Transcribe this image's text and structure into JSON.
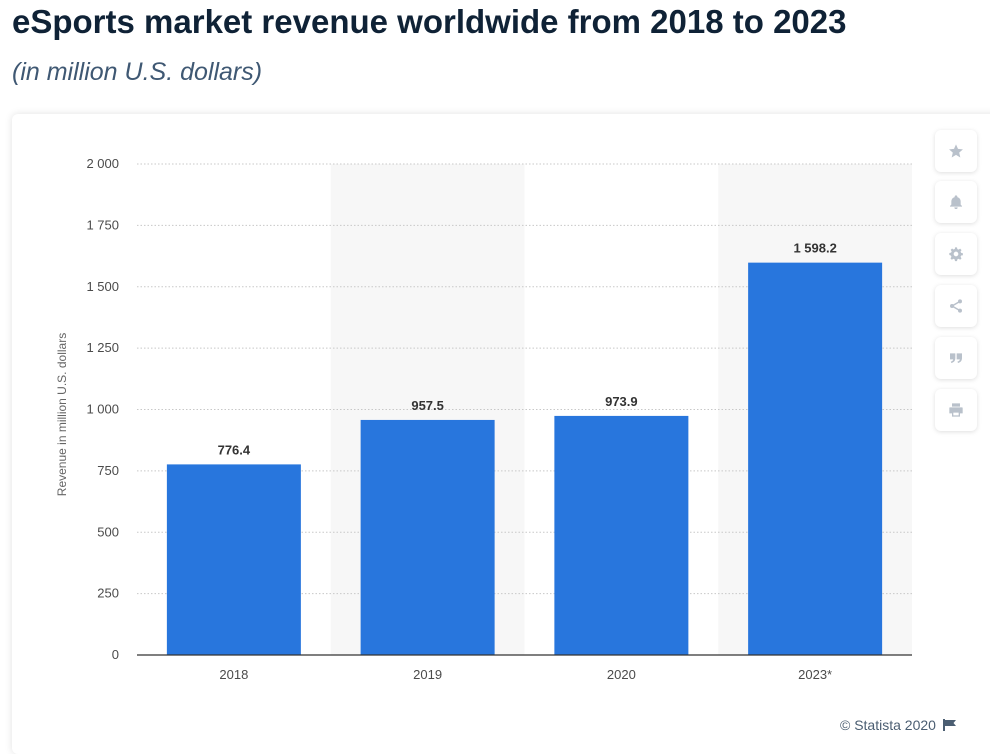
{
  "header": {
    "title": "eSports market revenue worldwide from 2018 to 2023",
    "subtitle": "(in million U.S. dollars)"
  },
  "credit": "© Statista 2020",
  "colors": {
    "bar": "#2876dd",
    "title": "#0f2236",
    "alt_band": "#f7f7f7",
    "grid": "#c8c8c8",
    "axis_text": "#4b4b4b",
    "icon": "#b9c1cb"
  },
  "toolbar": {
    "icons": [
      "star-icon",
      "bell-icon",
      "gear-icon",
      "share-icon",
      "quote-icon",
      "print-icon"
    ]
  },
  "chart_data": {
    "type": "bar",
    "categories": [
      "2018",
      "2019",
      "2020",
      "2023*"
    ],
    "values": [
      776.4,
      957.5,
      973.9,
      1598.2
    ],
    "value_labels": [
      "776.4",
      "957.5",
      "973.9",
      "1 598.2"
    ],
    "ylabel": "Revenue in million U.S. dollars",
    "xlabel": "",
    "ylim": [
      0,
      2000
    ],
    "yticks": [
      0,
      250,
      500,
      750,
      1000,
      1250,
      1500,
      1750,
      2000
    ],
    "ytick_labels": [
      "0",
      "250",
      "500",
      "750",
      "1 000",
      "1 250",
      "1 500",
      "1 750",
      "2 000"
    ],
    "grid": true,
    "alternating_bands": true,
    "legend": "none"
  }
}
